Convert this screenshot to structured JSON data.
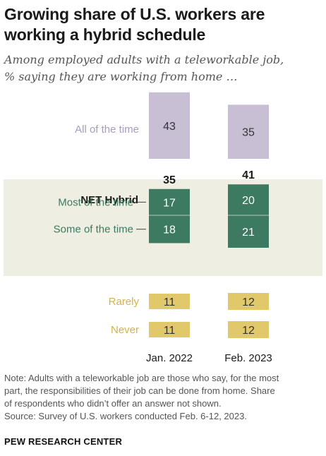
{
  "title": "Growing share of U.S. workers are working a hybrid schedule",
  "subtitle_line1": "Among employed adults with a teleworkable job,",
  "subtitle_line2": "% saying they are working from home …",
  "note_line1": "Note: Adults with a teleworkable job are those who say, for the most",
  "note_line2": "part, the responsibilities of their job can be done from home. Share",
  "note_line3": "of respondents who didn’t offer an answer not shown.",
  "source": "Source: Survey of U.S. workers conducted Feb. 6-12, 2023.",
  "brand": "PEW RESEARCH CENTER",
  "net_label": "NET Hybrid",
  "colors": {
    "all_time": "#c9bfd5",
    "hybrid": "#3c7a62",
    "rarely_never": "#e1c96b",
    "hybrid_band": "#eeefe2"
  },
  "chart_data": {
    "type": "bar",
    "categories": [
      "Jan. 2022",
      "Feb. 2023"
    ],
    "series": [
      {
        "name": "All of the time",
        "values": [
          43,
          35
        ]
      },
      {
        "name": "Most of the time",
        "values": [
          17,
          20
        ]
      },
      {
        "name": "Some of the time",
        "values": [
          18,
          21
        ]
      },
      {
        "name": "Rarely",
        "values": [
          11,
          12
        ]
      },
      {
        "name": "Never",
        "values": [
          11,
          12
        ]
      }
    ],
    "net_hybrid": [
      35,
      41
    ]
  }
}
